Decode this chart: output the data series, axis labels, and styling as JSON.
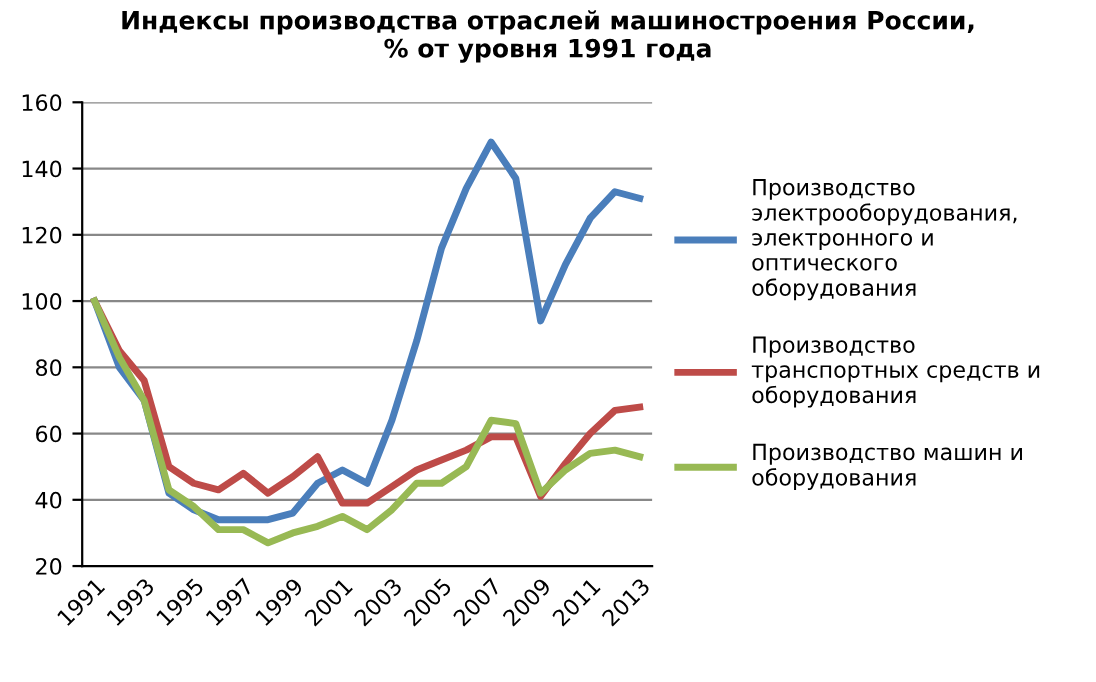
{
  "chart_data": {
    "type": "line",
    "title": "Индексы производства отраслей машиностроения России,\n% от уровня 1991 года",
    "categories": [
      "1991",
      null,
      "1993",
      null,
      "1995",
      null,
      "1997",
      null,
      "1999",
      null,
      "2001",
      null,
      "2003",
      null,
      "2005",
      null,
      "2007",
      null,
      "2009",
      null,
      "2011",
      null,
      "2013"
    ],
    "series": [
      {
        "name": "Производство\nэлектрооборудования,\nэлектронного и\nоптического\nоборудования",
        "color": "#4a7ebb",
        "values": [
          100,
          80,
          70,
          42,
          37,
          34,
          34,
          34,
          36,
          45,
          49,
          45,
          64,
          88,
          116,
          134,
          148,
          137,
          94,
          111,
          125,
          133,
          131
        ]
      },
      {
        "name": "Производство\nтранспортных средств и\nоборудования",
        "color": "#be4b48",
        "values": [
          100,
          85,
          76,
          50,
          45,
          43,
          48,
          42,
          47,
          53,
          39,
          39,
          44,
          49,
          52,
          55,
          59,
          59,
          41,
          51,
          60,
          67,
          68
        ]
      },
      {
        "name": "Производство машин и\nоборудования",
        "color": "#98b954",
        "values": [
          100,
          83,
          70,
          43,
          38,
          31,
          31,
          27,
          30,
          32,
          35,
          31,
          37,
          45,
          45,
          50,
          64,
          63,
          42,
          49,
          54,
          55,
          53
        ]
      }
    ],
    "ylim": [
      20,
      160
    ],
    "yticks": [
      20,
      40,
      60,
      80,
      100,
      120,
      140,
      160
    ],
    "grid": "y",
    "legend": "right",
    "marker": "none",
    "line_style": "solid"
  }
}
